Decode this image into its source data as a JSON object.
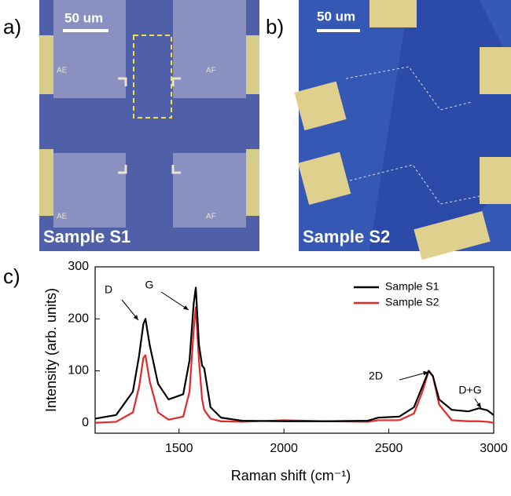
{
  "panels": {
    "a": {
      "label": "a)",
      "scale_bar": "50 um",
      "sample": "Sample S1",
      "marks": [
        "AE",
        "AF",
        "AE",
        "AF"
      ]
    },
    "b": {
      "label": "b)",
      "scale_bar": "50 um",
      "sample": "Sample S2"
    }
  },
  "chart_data": {
    "type": "line",
    "label": "c)",
    "xlabel": "Raman shift (cm⁻¹)",
    "ylabel": "Intensity (arb. units)",
    "x": [
      1100,
      1200,
      1280,
      1310,
      1330,
      1340,
      1360,
      1400,
      1450,
      1520,
      1550,
      1570,
      1580,
      1595,
      1610,
      1620,
      1650,
      1700,
      1800,
      2000,
      2200,
      2400,
      2450,
      2550,
      2620,
      2660,
      2690,
      2710,
      2740,
      2800,
      2880,
      2930,
      2970,
      3000
    ],
    "series": [
      {
        "name": "Sample S1",
        "color": "#000000",
        "values": [
          8,
          15,
          60,
          130,
          190,
          200,
          150,
          75,
          45,
          55,
          120,
          230,
          260,
          150,
          110,
          105,
          30,
          10,
          4,
          3,
          3,
          4,
          10,
          12,
          30,
          70,
          100,
          90,
          45,
          25,
          22,
          28,
          24,
          15
        ]
      },
      {
        "name": "Sample S2",
        "color": "#e8262a",
        "values": [
          0,
          2,
          20,
          70,
          125,
          130,
          80,
          20,
          6,
          12,
          60,
          180,
          222,
          120,
          45,
          25,
          8,
          3,
          2,
          5,
          3,
          2,
          5,
          5,
          18,
          60,
          100,
          90,
          35,
          5,
          3,
          3,
          2,
          0
        ]
      }
    ],
    "xlim": [
      1100,
      3000
    ],
    "xticks": [
      1500,
      2000,
      2500,
      3000
    ],
    "ylim": [
      -20,
      300
    ],
    "yticks": [
      0,
      100,
      200,
      300
    ],
    "annotations": [
      "D",
      "G",
      "2D",
      "D+G"
    ],
    "legend": "upper right"
  }
}
